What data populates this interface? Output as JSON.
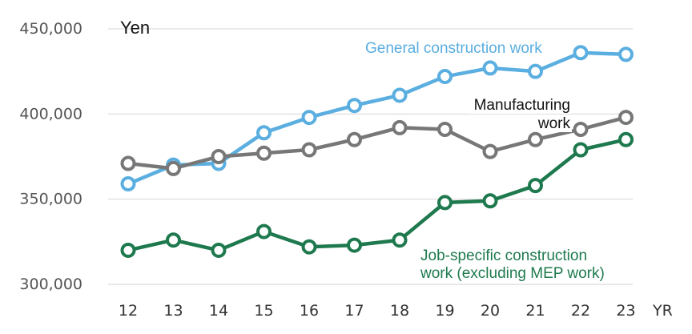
{
  "chart_data": {
    "type": "line",
    "ylabel": "Yen",
    "xlabel": "YR",
    "x": [
      "12",
      "13",
      "14",
      "15",
      "16",
      "17",
      "18",
      "19",
      "20",
      "21",
      "22",
      "23"
    ],
    "yticks": [
      "300,000",
      "350,000",
      "400,000",
      "450,000"
    ],
    "ylim": [
      300000,
      450000
    ],
    "grid": "horizontal",
    "series": [
      {
        "name": "General construction work",
        "label_lines": [
          "General construction work"
        ],
        "color": "#5aaee0",
        "values": [
          359000,
          370000,
          371000,
          389000,
          398000,
          405000,
          411000,
          422000,
          427000,
          425000,
          436000,
          435000
        ]
      },
      {
        "name": "Manufacturing work",
        "label_lines": [
          "Manufacturing",
          "work"
        ],
        "color": "#777777",
        "values": [
          371000,
          368000,
          375000,
          377000,
          379000,
          385000,
          392000,
          391000,
          378000,
          385000,
          391000,
          398000
        ]
      },
      {
        "name": "Job-specific construction work (excluding MEP work)",
        "label_lines": [
          "Job-specific construction",
          "work (excluding MEP work)"
        ],
        "color": "#1e7a4e",
        "values": [
          320000,
          326000,
          320000,
          331000,
          322000,
          323000,
          326000,
          348000,
          349000,
          358000,
          379000,
          385000
        ]
      }
    ]
  }
}
